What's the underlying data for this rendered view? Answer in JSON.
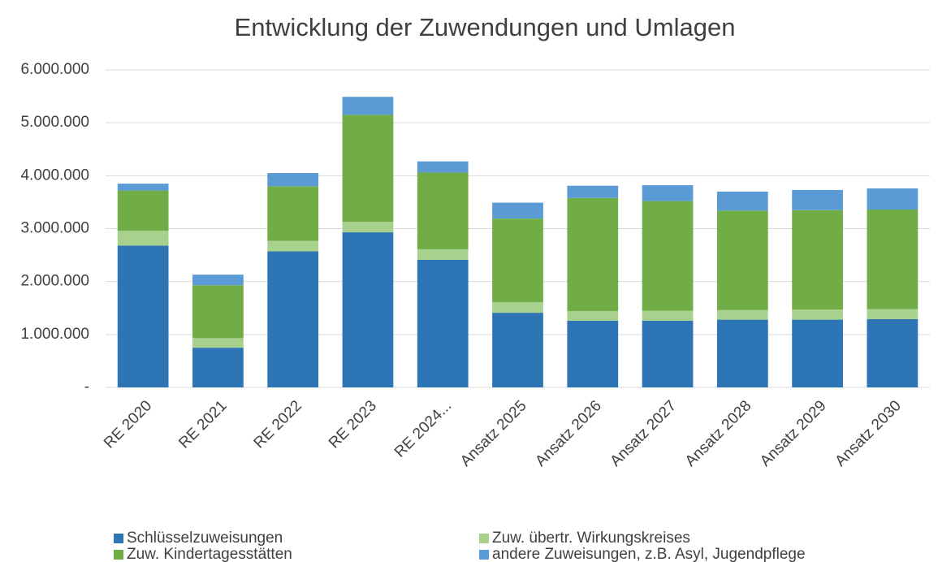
{
  "chart_data": {
    "type": "stacked_bar",
    "title": "Entwicklung der Zuwendungen und Umlagen",
    "categories": [
      "RE 2020",
      "RE 2021",
      "RE 2022",
      "RE 2023",
      "RE 2024...",
      "Ansatz 2025",
      "Ansatz 2026",
      "Ansatz 2027",
      "Ansatz 2028",
      "Ansatz 2029",
      "Ansatz 2030"
    ],
    "series": [
      {
        "name": "Schlüsselzuweisungen",
        "color": "#2e75b6",
        "values": [
          2680000,
          750000,
          2570000,
          2930000,
          2410000,
          1410000,
          1260000,
          1260000,
          1280000,
          1280000,
          1290000
        ]
      },
      {
        "name": "Zuw. übertr. Wirkungskreises",
        "color": "#a9d18e",
        "values": [
          280000,
          180000,
          200000,
          200000,
          200000,
          200000,
          180000,
          190000,
          180000,
          190000,
          190000
        ]
      },
      {
        "name": "Zuw. Kindertagesstätten",
        "color": "#70ad47",
        "values": [
          760000,
          1000000,
          1030000,
          2020000,
          1450000,
          1580000,
          2140000,
          2070000,
          1880000,
          1880000,
          1880000
        ]
      },
      {
        "name": "andere Zuweisungen, z.B. Asyl, Jugendpflege",
        "color": "#5b9bd5",
        "values": [
          130000,
          200000,
          250000,
          340000,
          210000,
          300000,
          230000,
          300000,
          360000,
          380000,
          400000
        ]
      }
    ],
    "ylim": [
      0,
      6000000
    ],
    "yticks": [
      {
        "value": 0,
        "label": "-"
      },
      {
        "value": 1000000,
        "label": "1.000.000"
      },
      {
        "value": 2000000,
        "label": "2.000.000"
      },
      {
        "value": 3000000,
        "label": "3.000.000"
      },
      {
        "value": 4000000,
        "label": "4.000.000"
      },
      {
        "value": 5000000,
        "label": "5.000.000"
      },
      {
        "value": 6000000,
        "label": "6.000.000"
      }
    ],
    "grid": true
  }
}
